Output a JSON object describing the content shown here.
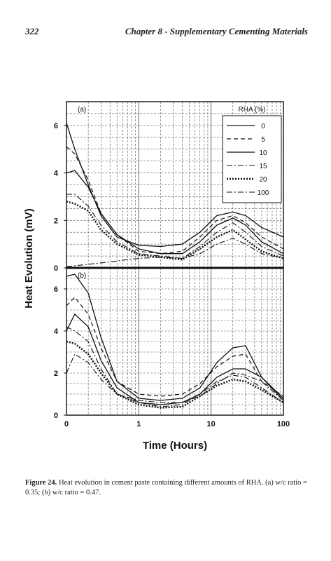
{
  "header": {
    "page_number": "322",
    "chapter_title": "Chapter 8 - Supplementary Cementing Materials"
  },
  "figure": {
    "caption_label": "Figure 24.",
    "caption_text": "Heat evolution in cement paste containing different amounts of RHA. (a) w/c ratio = 0.35; (b) w/c ratio = 0.47."
  },
  "chart_data": {
    "type": "line",
    "xlabel": "Time (Hours)",
    "ylabel": "Heat Evolution (mV)",
    "xscale": "log",
    "xlim": [
      0.1,
      100
    ],
    "x_ticks": [
      "0",
      "1",
      "10",
      "100"
    ],
    "legend_title": "RHA (%)",
    "legend_position": "top-right (panel a)",
    "line_styles": [
      "solid",
      "dashed",
      "solid",
      "dash-dot",
      "thick-dotted",
      "dash-dot"
    ],
    "panels": [
      {
        "label": "(a)",
        "ylim": [
          0,
          7
        ],
        "y_ticks": [
          "0",
          "2",
          "4",
          "6"
        ],
        "series": [
          {
            "name": "0",
            "points": [
              [
                0.1,
                6.1
              ],
              [
                0.13,
                5.0
              ],
              [
                0.2,
                3.5
              ],
              [
                0.3,
                2.2
              ],
              [
                0.5,
                1.3
              ],
              [
                1,
                0.95
              ],
              [
                2,
                0.9
              ],
              [
                4,
                1.0
              ],
              [
                7,
                1.5
              ],
              [
                12,
                2.2
              ],
              [
                20,
                2.35
              ],
              [
                30,
                2.2
              ],
              [
                50,
                1.7
              ],
              [
                100,
                1.3
              ]
            ]
          },
          {
            "name": "5",
            "points": [
              [
                0.1,
                5.1
              ],
              [
                0.13,
                4.8
              ],
              [
                0.2,
                3.7
              ],
              [
                0.3,
                2.3
              ],
              [
                0.5,
                1.4
              ],
              [
                1,
                0.7
              ],
              [
                2,
                0.6
              ],
              [
                4,
                0.7
              ],
              [
                7,
                1.3
              ],
              [
                12,
                2.0
              ],
              [
                20,
                2.2
              ],
              [
                30,
                1.9
              ],
              [
                50,
                1.3
              ],
              [
                100,
                0.8
              ]
            ]
          },
          {
            "name": "10",
            "points": [
              [
                0.1,
                4.0
              ],
              [
                0.13,
                4.1
              ],
              [
                0.2,
                3.4
              ],
              [
                0.3,
                2.3
              ],
              [
                0.5,
                1.4
              ],
              [
                1,
                0.8
              ],
              [
                2,
                0.6
              ],
              [
                4,
                0.6
              ],
              [
                7,
                1.1
              ],
              [
                12,
                1.8
              ],
              [
                20,
                2.1
              ],
              [
                30,
                1.8
              ],
              [
                50,
                1.1
              ],
              [
                100,
                0.6
              ]
            ]
          },
          {
            "name": "15",
            "points": [
              [
                0.1,
                3.1
              ],
              [
                0.13,
                3.1
              ],
              [
                0.2,
                2.6
              ],
              [
                0.3,
                1.8
              ],
              [
                0.5,
                1.1
              ],
              [
                1,
                0.6
              ],
              [
                2,
                0.5
              ],
              [
                4,
                0.4
              ],
              [
                7,
                0.9
              ],
              [
                12,
                1.5
              ],
              [
                20,
                1.9
              ],
              [
                30,
                1.5
              ],
              [
                50,
                0.9
              ],
              [
                100,
                0.5
              ]
            ]
          },
          {
            "name": "20",
            "points": [
              [
                0.1,
                2.8
              ],
              [
                0.13,
                2.7
              ],
              [
                0.2,
                2.4
              ],
              [
                0.3,
                1.6
              ],
              [
                0.5,
                1.0
              ],
              [
                1,
                0.55
              ],
              [
                2,
                0.45
              ],
              [
                4,
                0.35
              ],
              [
                7,
                0.8
              ],
              [
                12,
                1.3
              ],
              [
                20,
                1.6
              ],
              [
                30,
                1.2
              ],
              [
                50,
                0.7
              ],
              [
                100,
                0.4
              ]
            ]
          },
          {
            "name": "100",
            "points": [
              [
                0.1,
                0.05
              ],
              [
                0.2,
                0.15
              ],
              [
                0.4,
                0.25
              ],
              [
                0.7,
                0.35
              ],
              [
                1,
                0.4
              ],
              [
                2,
                0.45
              ],
              [
                4,
                0.4
              ],
              [
                7,
                0.6
              ],
              [
                12,
                1.0
              ],
              [
                20,
                1.25
              ],
              [
                30,
                1.0
              ],
              [
                50,
                0.6
              ],
              [
                100,
                0.4
              ]
            ]
          }
        ]
      },
      {
        "label": "(b)",
        "ylim": [
          0,
          7
        ],
        "y_ticks": [
          "0",
          "2",
          "4",
          "6"
        ],
        "series": [
          {
            "name": "0",
            "points": [
              [
                0.1,
                6.6
              ],
              [
                0.13,
                6.7
              ],
              [
                0.2,
                5.8
              ],
              [
                0.3,
                3.7
              ],
              [
                0.5,
                1.6
              ],
              [
                1,
                0.8
              ],
              [
                2,
                0.7
              ],
              [
                4,
                0.8
              ],
              [
                7,
                1.3
              ],
              [
                12,
                2.5
              ],
              [
                20,
                3.2
              ],
              [
                30,
                3.3
              ],
              [
                50,
                1.8
              ],
              [
                100,
                0.7
              ]
            ]
          },
          {
            "name": "5",
            "points": [
              [
                0.1,
                5.2
              ],
              [
                0.13,
                5.6
              ],
              [
                0.2,
                4.8
              ],
              [
                0.3,
                3.2
              ],
              [
                0.5,
                1.6
              ],
              [
                1,
                1.0
              ],
              [
                2,
                0.9
              ],
              [
                4,
                1.0
              ],
              [
                7,
                1.5
              ],
              [
                12,
                2.3
              ],
              [
                20,
                2.8
              ],
              [
                30,
                2.9
              ],
              [
                50,
                1.6
              ],
              [
                100,
                0.9
              ]
            ]
          },
          {
            "name": "10",
            "points": [
              [
                0.1,
                4.0
              ],
              [
                0.13,
                4.8
              ],
              [
                0.2,
                4.2
              ],
              [
                0.3,
                2.6
              ],
              [
                0.5,
                1.3
              ],
              [
                1,
                0.6
              ],
              [
                2,
                0.5
              ],
              [
                4,
                0.6
              ],
              [
                7,
                1.0
              ],
              [
                12,
                1.8
              ],
              [
                20,
                2.2
              ],
              [
                30,
                2.2
              ],
              [
                50,
                1.8
              ],
              [
                100,
                0.8
              ]
            ]
          },
          {
            "name": "15",
            "points": [
              [
                0.1,
                4.2
              ],
              [
                0.13,
                4.0
              ],
              [
                0.2,
                3.5
              ],
              [
                0.3,
                2.2
              ],
              [
                0.5,
                1.0
              ],
              [
                1,
                0.6
              ],
              [
                2,
                0.4
              ],
              [
                4,
                0.5
              ],
              [
                7,
                1.0
              ],
              [
                12,
                1.6
              ],
              [
                20,
                1.9
              ],
              [
                30,
                1.8
              ],
              [
                50,
                1.3
              ],
              [
                100,
                0.6
              ]
            ]
          },
          {
            "name": "20",
            "points": [
              [
                0.1,
                3.5
              ],
              [
                0.13,
                3.4
              ],
              [
                0.2,
                2.9
              ],
              [
                0.3,
                2.0
              ],
              [
                0.5,
                1.0
              ],
              [
                1,
                0.5
              ],
              [
                2,
                0.35
              ],
              [
                4,
                0.4
              ],
              [
                7,
                0.9
              ],
              [
                12,
                1.4
              ],
              [
                20,
                1.7
              ],
              [
                30,
                1.6
              ],
              [
                50,
                1.2
              ],
              [
                100,
                0.6
              ]
            ]
          },
          {
            "name": "100",
            "points": [
              [
                0.1,
                2.0
              ],
              [
                0.13,
                2.9
              ],
              [
                0.2,
                2.5
              ],
              [
                0.3,
                1.7
              ],
              [
                0.5,
                1.0
              ],
              [
                1,
                0.7
              ],
              [
                2,
                0.6
              ],
              [
                4,
                0.6
              ],
              [
                7,
                0.9
              ],
              [
                12,
                1.5
              ],
              [
                20,
                2.0
              ],
              [
                30,
                1.9
              ],
              [
                50,
                1.6
              ],
              [
                100,
                0.7
              ]
            ]
          }
        ]
      }
    ]
  }
}
